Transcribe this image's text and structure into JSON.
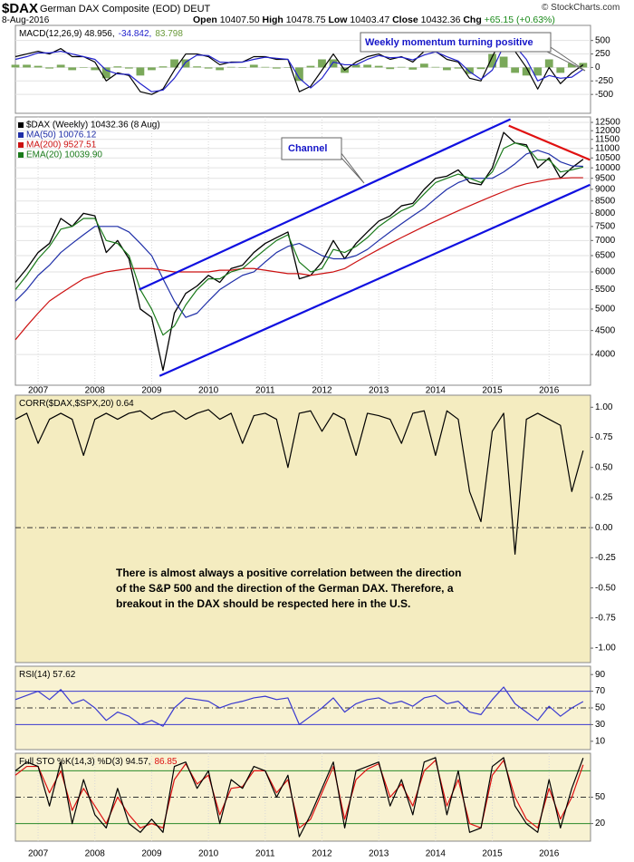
{
  "header": {
    "symbol": "$DAX",
    "name": "German DAX Composite (EOD) DEUT",
    "date": "8-Aug-2016",
    "copyright": "© StockCharts.com",
    "quote": [
      {
        "label": "Open",
        "value": "10407.50"
      },
      {
        "label": "High",
        "value": "10478.75"
      },
      {
        "label": "Low",
        "value": "10403.47"
      },
      {
        "label": "Close",
        "value": "10432.36"
      },
      {
        "label": "Chg",
        "value": "+65.15 (+0.63%)"
      }
    ]
  },
  "chart_data": [
    {
      "type": "line",
      "label": [
        {
          "text": "MACD(12,26,9) 48.956,",
          "color": "#000000"
        },
        {
          "text": "-34.842,",
          "color": "#2222cc"
        },
        {
          "text": "83.798",
          "color": "#6a9a3a"
        }
      ],
      "annotations": [
        {
          "text": "Weekly momentum turning positive"
        }
      ],
      "xlim": [
        2006.6,
        2016.73
      ],
      "ylim": [
        -850,
        780
      ],
      "yticks": [
        500,
        250,
        0,
        -250,
        -500
      ],
      "grid": true,
      "x": [
        2006.6,
        2006.8,
        2007,
        2007.2,
        2007.4,
        2007.6,
        2007.8,
        2008,
        2008.2,
        2008.4,
        2008.6,
        2008.8,
        2009,
        2009.2,
        2009.4,
        2009.6,
        2009.8,
        2010,
        2010.2,
        2010.4,
        2010.6,
        2010.8,
        2011,
        2011.2,
        2011.4,
        2011.6,
        2011.8,
        2012,
        2012.2,
        2012.4,
        2012.6,
        2012.8,
        2013,
        2013.2,
        2013.4,
        2013.6,
        2013.8,
        2014,
        2014.2,
        2014.4,
        2014.6,
        2014.8,
        2015,
        2015.2,
        2015.4,
        2015.6,
        2015.8,
        2016,
        2016.2,
        2016.4,
        2016.6
      ],
      "series": [
        {
          "kind": "bar",
          "color": "#7aa85a",
          "values": [
            50,
            50,
            30,
            -20,
            50,
            -50,
            0,
            -50,
            -200,
            20,
            -20,
            -150,
            -50,
            20,
            150,
            150,
            20,
            -20,
            -50,
            10,
            0,
            50,
            10,
            -20,
            0,
            -250,
            30,
            150,
            150,
            -100,
            50,
            50,
            30,
            -30,
            10,
            -40,
            70,
            10,
            -50,
            -20,
            -120,
            -30,
            250,
            200,
            -100,
            -150,
            -150,
            150,
            -100,
            80,
            83.798
          ]
        },
        {
          "kind": "line",
          "color": "#000000",
          "values": [
            200,
            250,
            300,
            250,
            350,
            200,
            200,
            100,
            -250,
            -100,
            -150,
            -450,
            -500,
            -400,
            -50,
            250,
            250,
            200,
            50,
            100,
            100,
            200,
            200,
            150,
            150,
            -450,
            -350,
            -50,
            250,
            -50,
            100,
            200,
            250,
            150,
            200,
            100,
            300,
            300,
            150,
            100,
            -200,
            -250,
            200,
            600,
            300,
            0,
            -400,
            0,
            -300,
            -100,
            48.956
          ]
        },
        {
          "kind": "line",
          "color": "#2222cc",
          "values": [
            150,
            200,
            270,
            270,
            300,
            250,
            200,
            150,
            -50,
            -120,
            -130,
            -300,
            -450,
            -420,
            -200,
            100,
            230,
            220,
            100,
            90,
            100,
            150,
            190,
            170,
            150,
            -200,
            -380,
            -200,
            100,
            50,
            50,
            150,
            220,
            180,
            190,
            140,
            230,
            290,
            200,
            120,
            -80,
            -220,
            -50,
            400,
            400,
            150,
            -250,
            -150,
            -200,
            -180,
            -34.842
          ]
        }
      ]
    },
    {
      "type": "line",
      "log": true,
      "annotations": [
        {
          "text": "Channel"
        }
      ],
      "xlim": [
        2006.6,
        2016.73
      ],
      "xticks": [
        2007,
        2008,
        2009,
        2010,
        2011,
        2012,
        2013,
        2014,
        2015,
        2016
      ],
      "ylim": [
        3440,
        12840
      ],
      "yticks": [
        4000,
        4500,
        5000,
        5500,
        6000,
        6500,
        7000,
        7500,
        8000,
        8500,
        9000,
        9500,
        10000,
        10500,
        11000,
        11500,
        12000,
        12500
      ],
      "grid": true,
      "x": [
        2006.6,
        2006.8,
        2007,
        2007.2,
        2007.4,
        2007.6,
        2007.8,
        2008,
        2008.2,
        2008.4,
        2008.6,
        2008.8,
        2009,
        2009.2,
        2009.4,
        2009.6,
        2009.8,
        2010,
        2010.2,
        2010.4,
        2010.6,
        2010.8,
        2011,
        2011.2,
        2011.4,
        2011.6,
        2011.8,
        2012,
        2012.2,
        2012.4,
        2012.6,
        2012.8,
        2013,
        2013.2,
        2013.4,
        2013.6,
        2013.8,
        2014,
        2014.2,
        2014.4,
        2014.6,
        2014.8,
        2015,
        2015.2,
        2015.4,
        2015.6,
        2015.8,
        2016,
        2016.2,
        2016.4,
        2016.6
      ],
      "series": [
        {
          "name": "$DAX (Weekly) 10432.36 (8 Aug)",
          "kind": "line",
          "color": "#000000",
          "values": [
            5700,
            6100,
            6600,
            6900,
            7800,
            7500,
            8000,
            7900,
            6600,
            7000,
            6400,
            5000,
            4800,
            3700,
            4900,
            5400,
            5600,
            5900,
            5700,
            6100,
            6200,
            6600,
            6900,
            7100,
            7300,
            5800,
            5900,
            6300,
            7000,
            6400,
            6900,
            7300,
            7700,
            7900,
            8300,
            8400,
            9000,
            9500,
            9600,
            9900,
            9300,
            9200,
            10000,
            11900,
            11300,
            11200,
            10000,
            10500,
            9500,
            10000,
            10432.36
          ]
        },
        {
          "name": "MA(50) 10076.12",
          "kind": "line",
          "color": "#1f2fa8",
          "values": [
            5200,
            5500,
            5900,
            6200,
            6600,
            6900,
            7200,
            7500,
            7500,
            7500,
            7300,
            6900,
            6500,
            5800,
            5200,
            4800,
            4900,
            5200,
            5500,
            5700,
            5900,
            6000,
            6300,
            6600,
            6800,
            6900,
            6700,
            6500,
            6400,
            6400,
            6500,
            6700,
            7000,
            7300,
            7600,
            7900,
            8200,
            8600,
            9000,
            9300,
            9500,
            9500,
            9500,
            9800,
            10200,
            10700,
            10900,
            10700,
            10300,
            10100,
            10076.12
          ]
        },
        {
          "name": "MA(200) 9527.51",
          "kind": "line",
          "color": "#cc1111",
          "values": [
            4300,
            4600,
            4900,
            5200,
            5400,
            5600,
            5800,
            5900,
            6000,
            6050,
            6100,
            6100,
            6100,
            6050,
            6000,
            6000,
            6000,
            6000,
            6050,
            6050,
            6100,
            6100,
            6050,
            6000,
            5950,
            5950,
            5900,
            5950,
            6000,
            6100,
            6300,
            6500,
            6700,
            6900,
            7100,
            7300,
            7500,
            7700,
            7900,
            8100,
            8300,
            8500,
            8700,
            8900,
            9100,
            9250,
            9350,
            9450,
            9500,
            9527.51,
            9527.51
          ]
        },
        {
          "name": "EMA(20) 10039.90",
          "kind": "line",
          "color": "#1a7a1a",
          "values": [
            5500,
            5900,
            6400,
            6800,
            7400,
            7500,
            7800,
            7800,
            7000,
            6900,
            6500,
            5500,
            5000,
            4400,
            4600,
            5100,
            5500,
            5800,
            5800,
            6000,
            6100,
            6400,
            6700,
            7000,
            7200,
            6300,
            6000,
            6100,
            6700,
            6600,
            6800,
            7100,
            7500,
            7800,
            8100,
            8300,
            8800,
            9300,
            9500,
            9700,
            9500,
            9300,
            9800,
            11000,
            11300,
            11100,
            10400,
            10400,
            9800,
            9900,
            10039.9
          ]
        }
      ],
      "trendlines": [
        {
          "color": "#1010e0",
          "x": [
            2008.78,
            2015.32
          ],
          "y": [
            5500,
            12700
          ]
        },
        {
          "color": "#1010e0",
          "x": [
            2009.14,
            2016.72
          ],
          "y": [
            3600,
            9200
          ]
        },
        {
          "color": "#e01010",
          "x": [
            2015.29,
            2016.72
          ],
          "y": [
            12300,
            10400
          ]
        }
      ]
    },
    {
      "type": "line",
      "label": [
        {
          "text": "CORR($DAX,$SPX,20) 0.64",
          "color": "#000000"
        }
      ],
      "note": [
        "There is almost always a positive correlation between the direction",
        "of the S&P 500 and the direction of the German DAX.  Therefore, a",
        "breakout in the DAX should be respected here in the U.S."
      ],
      "xlim": [
        2006.6,
        2016.73
      ],
      "ylim": [
        -1.12,
        1.1
      ],
      "yticks": [
        {
          "value": 1,
          "label": "1.00"
        },
        {
          "value": 0.75,
          "label": "0.75"
        },
        {
          "value": 0.5,
          "label": "0.50"
        },
        {
          "value": 0.25,
          "label": "0.25"
        },
        {
          "value": 0,
          "label": "0.00"
        },
        {
          "value": -0.25,
          "label": "-0.25"
        },
        {
          "value": -0.5,
          "label": "-0.50"
        },
        {
          "value": -0.75,
          "label": "-0.75"
        },
        {
          "value": -1,
          "label": "-1.00"
        }
      ],
      "ref_lines": [
        0
      ],
      "x": [
        2006.6,
        2006.8,
        2007,
        2007.2,
        2007.4,
        2007.6,
        2007.8,
        2008,
        2008.2,
        2008.4,
        2008.6,
        2008.8,
        2009,
        2009.2,
        2009.4,
        2009.6,
        2009.8,
        2010,
        2010.2,
        2010.4,
        2010.6,
        2010.8,
        2011,
        2011.2,
        2011.4,
        2011.6,
        2011.8,
        2012,
        2012.2,
        2012.4,
        2012.6,
        2012.8,
        2013,
        2013.2,
        2013.4,
        2013.6,
        2013.8,
        2014,
        2014.2,
        2014.4,
        2014.6,
        2014.8,
        2015,
        2015.2,
        2015.4,
        2015.6,
        2015.8,
        2016,
        2016.2,
        2016.4,
        2016.6
      ],
      "series": [
        {
          "kind": "line",
          "color": "#000000",
          "values": [
            0.9,
            0.95,
            0.7,
            0.9,
            0.95,
            0.9,
            0.6,
            0.9,
            0.95,
            0.9,
            0.95,
            0.97,
            0.9,
            0.95,
            0.97,
            0.9,
            0.95,
            0.98,
            0.9,
            0.95,
            0.7,
            0.93,
            0.95,
            0.9,
            0.5,
            0.95,
            0.97,
            0.8,
            0.95,
            0.9,
            0.6,
            0.95,
            0.93,
            0.9,
            0.7,
            0.95,
            0.97,
            0.6,
            0.97,
            0.9,
            0.3,
            0.05,
            0.8,
            0.95,
            -0.22,
            0.9,
            0.95,
            0.9,
            0.85,
            0.3,
            0.64
          ]
        }
      ]
    },
    {
      "type": "line",
      "label": [
        {
          "text": "RSI(14) 57.62",
          "color": "#000000"
        }
      ],
      "xlim": [
        2006.6,
        2016.73
      ],
      "ylim": [
        0,
        100
      ],
      "yticks": [
        90,
        70,
        50,
        30,
        10
      ],
      "ref_lines": [
        70,
        50,
        30
      ],
      "x": [
        2006.6,
        2006.8,
        2007,
        2007.2,
        2007.4,
        2007.6,
        2007.8,
        2008,
        2008.2,
        2008.4,
        2008.6,
        2008.8,
        2009,
        2009.2,
        2009.4,
        2009.6,
        2009.8,
        2010,
        2010.2,
        2010.4,
        2010.6,
        2010.8,
        2011,
        2011.2,
        2011.4,
        2011.6,
        2011.8,
        2012,
        2012.2,
        2012.4,
        2012.6,
        2012.8,
        2013,
        2013.2,
        2013.4,
        2013.6,
        2013.8,
        2014,
        2014.2,
        2014.4,
        2014.6,
        2014.8,
        2015,
        2015.2,
        2015.4,
        2015.6,
        2015.8,
        2016,
        2016.2,
        2016.4,
        2016.6
      ],
      "series": [
        {
          "kind": "line",
          "color": "#3a3ad0",
          "values": [
            60,
            65,
            70,
            60,
            72,
            55,
            60,
            50,
            35,
            45,
            40,
            30,
            35,
            28,
            50,
            62,
            60,
            58,
            50,
            55,
            58,
            62,
            64,
            60,
            62,
            30,
            40,
            50,
            62,
            45,
            55,
            60,
            62,
            55,
            58,
            52,
            62,
            65,
            55,
            58,
            45,
            42,
            60,
            75,
            55,
            45,
            35,
            52,
            40,
            50,
            57.62
          ]
        }
      ]
    },
    {
      "type": "line",
      "label": [
        {
          "text": "Full STO %K(14,3) %D(3) 94.57,",
          "color": "#000000"
        },
        {
          "text": "86.85",
          "color": "#dd1111"
        }
      ],
      "xlim": [
        2006.6,
        2016.73
      ],
      "xticks": [
        2007,
        2008,
        2009,
        2010,
        2011,
        2012,
        2013,
        2014,
        2015,
        2016
      ],
      "ylim": [
        0,
        100
      ],
      "yticks": [
        50,
        20
      ],
      "ref_lines": [
        80,
        50,
        20
      ],
      "x": [
        2006.6,
        2006.8,
        2007,
        2007.2,
        2007.4,
        2007.6,
        2007.8,
        2008,
        2008.2,
        2008.4,
        2008.6,
        2008.8,
        2009,
        2009.2,
        2009.4,
        2009.6,
        2009.8,
        2010,
        2010.2,
        2010.4,
        2010.6,
        2010.8,
        2011,
        2011.2,
        2011.4,
        2011.6,
        2011.8,
        2012,
        2012.2,
        2012.4,
        2012.6,
        2012.8,
        2013,
        2013.2,
        2013.4,
        2013.6,
        2013.8,
        2014,
        2014.2,
        2014.4,
        2014.6,
        2014.8,
        2015,
        2015.2,
        2015.4,
        2015.6,
        2015.8,
        2016,
        2016.2,
        2016.4,
        2016.6
      ],
      "series": [
        {
          "kind": "line",
          "color": "#dd1111",
          "values": [
            75,
            85,
            85,
            55,
            80,
            35,
            60,
            40,
            20,
            50,
            30,
            15,
            20,
            15,
            70,
            88,
            65,
            75,
            30,
            60,
            62,
            80,
            80,
            55,
            70,
            15,
            25,
            55,
            85,
            25,
            70,
            82,
            88,
            50,
            65,
            40,
            80,
            92,
            40,
            70,
            20,
            15,
            75,
            92,
            50,
            25,
            15,
            60,
            25,
            50,
            86.85
          ]
        },
        {
          "kind": "line",
          "color": "#000000",
          "values": [
            80,
            90,
            85,
            40,
            90,
            20,
            70,
            30,
            15,
            60,
            20,
            10,
            25,
            10,
            85,
            90,
            60,
            80,
            20,
            70,
            60,
            85,
            80,
            50,
            75,
            5,
            30,
            60,
            90,
            15,
            80,
            85,
            90,
            40,
            70,
            30,
            90,
            95,
            30,
            80,
            10,
            15,
            85,
            95,
            40,
            20,
            10,
            70,
            15,
            60,
            94.57
          ]
        }
      ]
    }
  ]
}
